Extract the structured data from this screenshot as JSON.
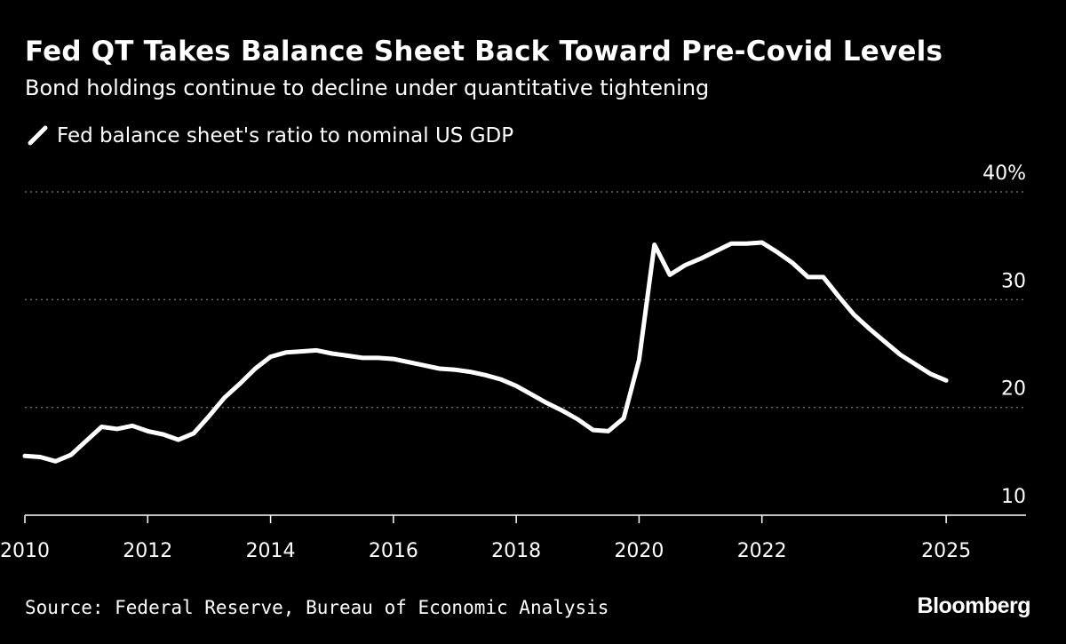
{
  "colors": {
    "background": "#000000",
    "text": "#ffffff",
    "line": "#ffffff",
    "grid": "#6b6b6b"
  },
  "source": "Source: Federal Reserve, Bureau of Economic Analysis",
  "brand": "Bloomberg",
  "chart_data": {
    "type": "line",
    "title": "Fed QT Takes Balance Sheet Back Toward Pre-Covid Levels",
    "subtitle": "Bond holdings continue to decline under quantitative tightening",
    "xlabel": "",
    "ylabel": "",
    "xlim": [
      2010,
      2026.3
    ],
    "ylim": [
      10,
      40
    ],
    "grid": "horizontal-dotted",
    "y_ticks": [
      {
        "value": 10,
        "label": "10"
      },
      {
        "value": 20,
        "label": "20"
      },
      {
        "value": 30,
        "label": "30"
      },
      {
        "value": 40,
        "label": "40%"
      }
    ],
    "x_ticks": [
      {
        "value": 2010,
        "label": "2010"
      },
      {
        "value": 2012,
        "label": "2012"
      },
      {
        "value": 2014,
        "label": "2014"
      },
      {
        "value": 2016,
        "label": "2016"
      },
      {
        "value": 2018,
        "label": "2018"
      },
      {
        "value": 2020,
        "label": "2020"
      },
      {
        "value": 2022,
        "label": "2022"
      },
      {
        "value": 2025,
        "label": "2025"
      }
    ],
    "legend": {
      "position": "top-left",
      "entries": [
        "Fed balance sheet's ratio to nominal US GDP"
      ]
    },
    "series": [
      {
        "name": "Fed balance sheet's ratio to nominal US GDP",
        "x": [
          2010.0,
          2010.25,
          2010.5,
          2010.75,
          2011.0,
          2011.25,
          2011.5,
          2011.75,
          2012.0,
          2012.25,
          2012.5,
          2012.75,
          2013.0,
          2013.25,
          2013.5,
          2013.75,
          2014.0,
          2014.25,
          2014.5,
          2014.75,
          2015.0,
          2015.25,
          2015.5,
          2015.75,
          2016.0,
          2016.25,
          2016.5,
          2016.75,
          2017.0,
          2017.25,
          2017.5,
          2017.75,
          2018.0,
          2018.25,
          2018.5,
          2018.75,
          2019.0,
          2019.25,
          2019.5,
          2019.75,
          2020.0,
          2020.25,
          2020.5,
          2020.75,
          2021.0,
          2021.25,
          2021.5,
          2021.75,
          2022.0,
          2022.25,
          2022.5,
          2022.75,
          2023.0,
          2023.25,
          2023.5,
          2023.75,
          2024.0,
          2024.25,
          2024.5,
          2024.75,
          2025.0
        ],
        "values": [
          15.5,
          15.4,
          15.0,
          15.6,
          16.9,
          18.2,
          18.0,
          18.3,
          17.8,
          17.5,
          17.0,
          17.6,
          19.2,
          20.9,
          22.2,
          23.6,
          24.7,
          25.1,
          25.2,
          25.3,
          25.0,
          24.8,
          24.6,
          24.6,
          24.5,
          24.2,
          23.9,
          23.6,
          23.5,
          23.3,
          23.0,
          22.6,
          22.0,
          21.2,
          20.4,
          19.7,
          18.9,
          17.9,
          17.8,
          19.0,
          24.4,
          35.1,
          32.3,
          33.2,
          33.8,
          34.5,
          35.2,
          35.2,
          35.3,
          34.4,
          33.4,
          32.1,
          32.1,
          30.3,
          28.6,
          27.3,
          26.1,
          24.9,
          24.0,
          23.1,
          22.5
        ]
      }
    ]
  }
}
